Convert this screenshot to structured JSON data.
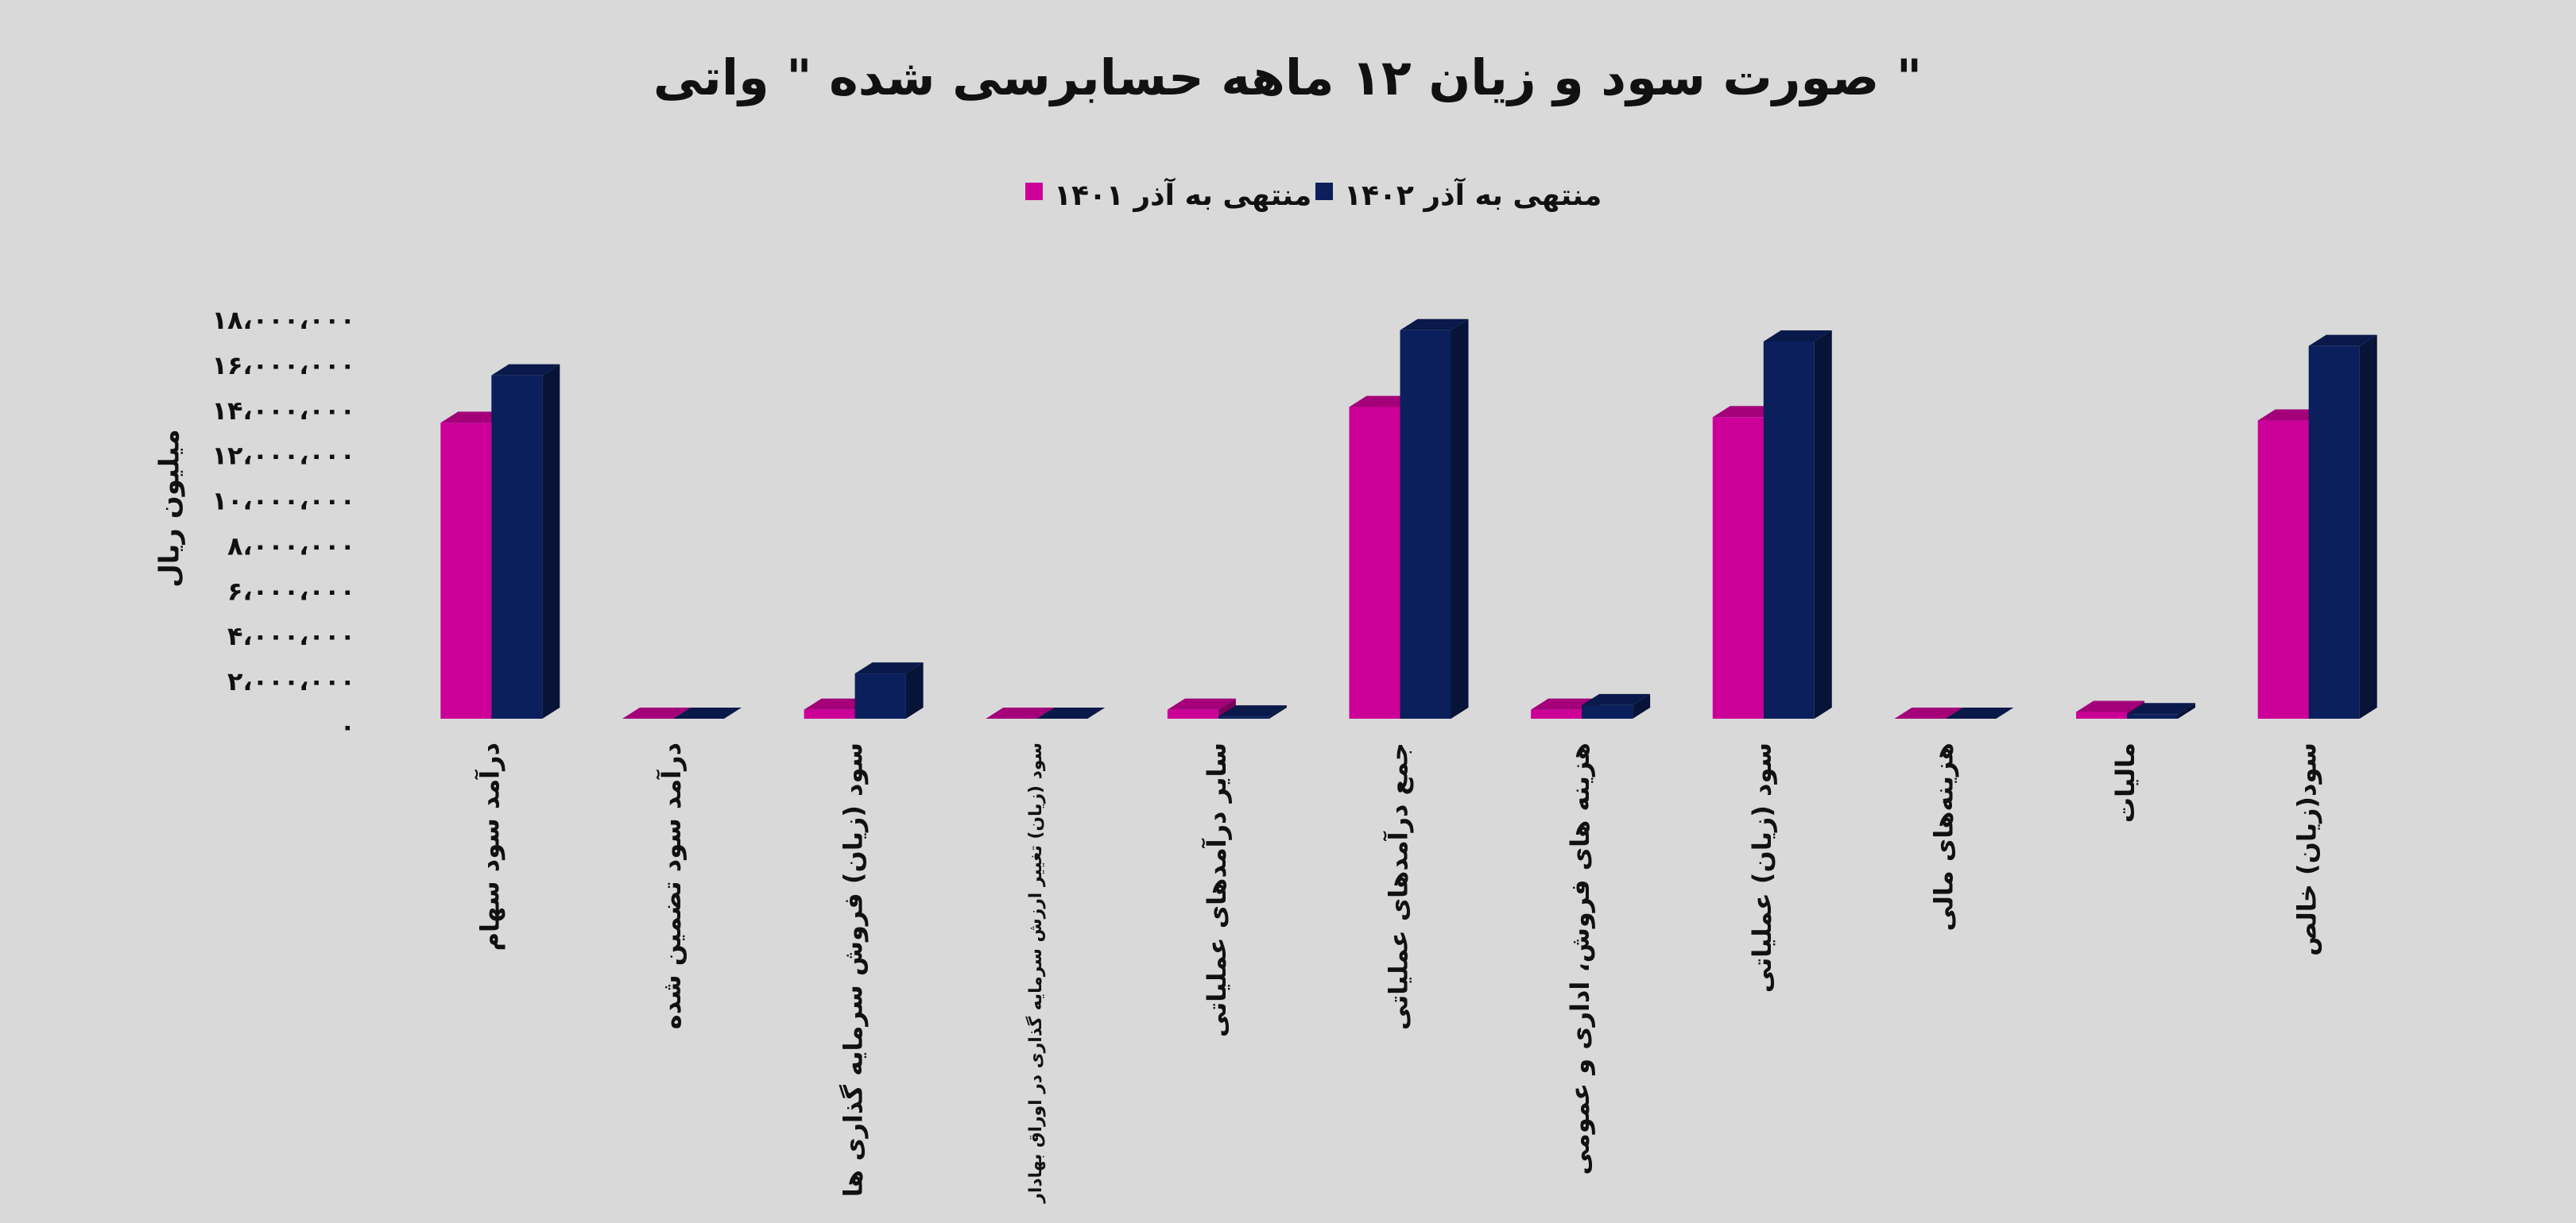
{
  "chart_data": {
    "type": "bar3d",
    "title": "صورت سود و زیان ۱۲ ماهه حسابرسی شده \" واتی \"",
    "y_label": "میلیون ریال",
    "categories": [
      "درآمد سود سهام",
      "درآمد سود تضمین شده",
      "سود (زیان) فروش سرمایه گذاری ها",
      "سود (زیان) تغییر ارزش سرمایه گذاری در اوراق بهادار",
      "سایر درآمدهای عملیاتی",
      "جمع درآمدهای عملیاتی",
      "هزینه های فروش، اداری و عمومی",
      "سود (زیان) عملیاتی",
      "هزینه‌های مالی",
      "مالیات",
      "سود(زیان) خالص"
    ],
    "series": [
      {
        "name": "منتهی به آذر ۱۴۰۱",
        "color": "#cc0099",
        "values": [
          13100000,
          0,
          400000,
          0,
          400000,
          13800000,
          400000,
          13350000,
          0,
          300000,
          13200000
        ]
      },
      {
        "name": "منتهی به آذر ۱۴۰۲",
        "color": "#0b1f5c",
        "values": [
          15200000,
          0,
          2000000,
          0,
          100000,
          17200000,
          600000,
          16700000,
          0,
          200000,
          16500000
        ]
      }
    ],
    "ylim": [
      0,
      18000000
    ],
    "yticks": [
      {
        "value": 0,
        "label": "۰"
      },
      {
        "value": 2000000,
        "label": "۲،۰۰۰،۰۰۰"
      },
      {
        "value": 4000000,
        "label": "۴،۰۰۰،۰۰۰"
      },
      {
        "value": 6000000,
        "label": "۶،۰۰۰،۰۰۰"
      },
      {
        "value": 8000000,
        "label": "۸،۰۰۰،۰۰۰"
      },
      {
        "value": 10000000,
        "label": "۱۰،۰۰۰،۰۰۰"
      },
      {
        "value": 12000000,
        "label": "۱۲،۰۰۰،۰۰۰"
      },
      {
        "value": 14000000,
        "label": "۱۴،۰۰۰،۰۰۰"
      },
      {
        "value": 16000000,
        "label": "۱۶،۰۰۰،۰۰۰"
      },
      {
        "value": 18000000,
        "label": "۱۸،۰۰۰،۰۰۰"
      }
    ],
    "grid": false
  }
}
